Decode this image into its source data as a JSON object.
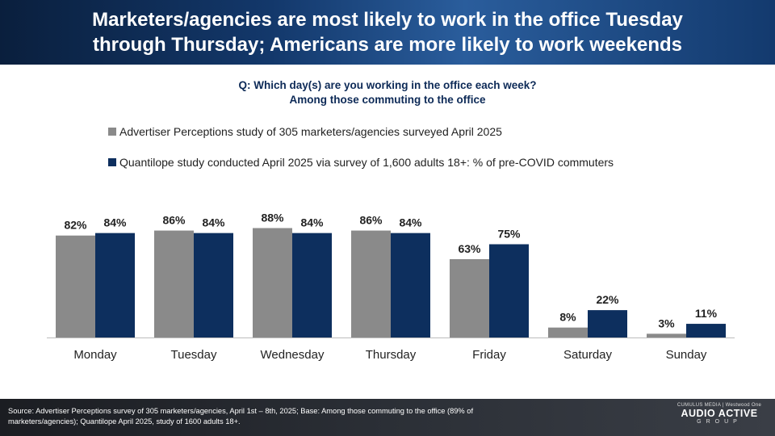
{
  "header": {
    "title_line1": "Marketers/agencies are most likely to work in the office Tuesday",
    "title_line2": "through Thursday; Americans are more likely to work weekends"
  },
  "question": {
    "line1": "Q: Which day(s) are you working in the office each week?",
    "line2": "Among those commuting to the office"
  },
  "chart_data": {
    "type": "bar",
    "categories": [
      "Monday",
      "Tuesday",
      "Wednesday",
      "Thursday",
      "Friday",
      "Saturday",
      "Sunday"
    ],
    "series": [
      {
        "name": "Advertiser Perceptions study of 305 marketers/agencies surveyed April 2025",
        "color": "#8a8a8a",
        "values": [
          82,
          86,
          88,
          86,
          63,
          8,
          3
        ],
        "labels": [
          "82%",
          "86%",
          "88%",
          "86%",
          "63%",
          "8%",
          "3%"
        ]
      },
      {
        "name": "Quantilope study conducted April 2025 via survey of 1,600 adults 18+: % of pre-COVID commuters",
        "color": "#0d2f5e",
        "values": [
          84,
          84,
          84,
          84,
          75,
          22,
          11
        ],
        "labels": [
          "84%",
          "84%",
          "84%",
          "84%",
          "75%",
          "22%",
          "11%"
        ]
      }
    ],
    "ylim": [
      0,
      100
    ],
    "grid": false,
    "legend_position": "top-left"
  },
  "footer": {
    "source_line1": "Source: Advertiser Perceptions survey of 305 marketers/agencies, April 1st –  8th, 2025; Base: Among those commuting to the office  (89% of",
    "source_line2": "marketers/agencies); Quantilope April 2025, study of 1600 adults 18+."
  },
  "logo": {
    "top": "CUMULUS MEDIA | Westwood One",
    "main": "AUDIO ACTIVE",
    "sub": "GROUP"
  }
}
